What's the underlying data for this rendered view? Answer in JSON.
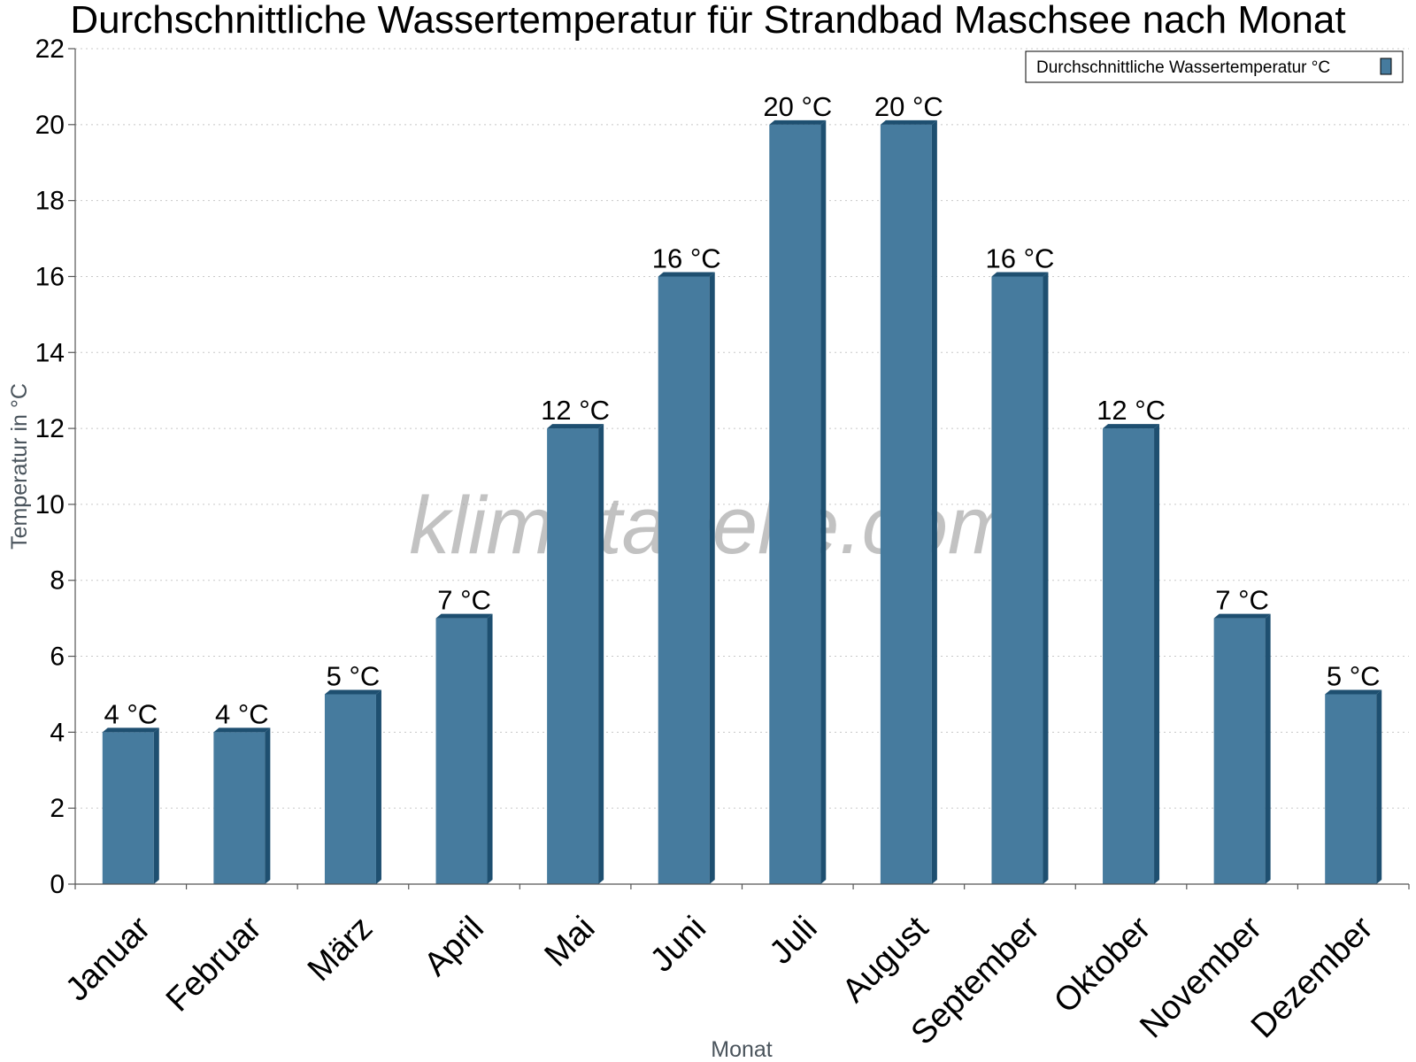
{
  "chart_data": {
    "type": "bar",
    "title": "Durchschnittliche Wassertemperatur für Strandbad Maschsee nach Monat",
    "xlabel": "Monat",
    "ylabel": "Temperatur in °C",
    "categories": [
      "Januar",
      "Februar",
      "März",
      "April",
      "Mai",
      "Juni",
      "Juli",
      "August",
      "September",
      "Oktober",
      "November",
      "Dezember"
    ],
    "series": [
      {
        "name": "Durchschnittliche Wassertemperatur °C",
        "values": [
          4,
          4,
          5,
          7,
          12,
          16,
          20,
          20,
          16,
          12,
          7,
          5
        ],
        "value_labels": [
          "4 °C",
          "4 °C",
          "5 °C",
          "7 °C",
          "12 °C",
          "16 °C",
          "20 °C",
          "20 °C",
          "16 °C",
          "12 °C",
          "7 °C",
          "5 °C"
        ],
        "color": "#467b9e",
        "side_color": "#1e4f70"
      }
    ],
    "ylim": [
      0,
      22
    ],
    "yticks": [
      0,
      2,
      4,
      6,
      8,
      10,
      12,
      14,
      16,
      18,
      20,
      22
    ],
    "grid": true,
    "legend_position": "top-right",
    "watermark": "klimatabelle.com"
  }
}
